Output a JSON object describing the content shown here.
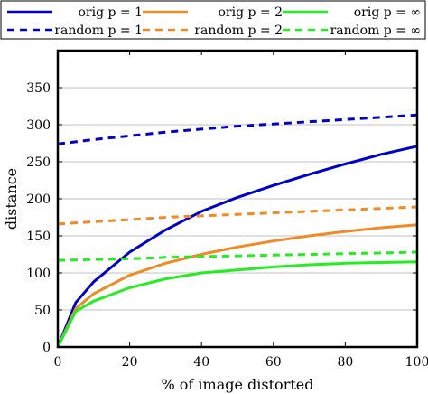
{
  "chart_data": {
    "type": "line",
    "xlabel": "% of image distorted",
    "ylabel": "distance",
    "xlim": [
      0,
      100
    ],
    "ylim": [
      0,
      400
    ],
    "xticks": [
      0,
      20,
      40,
      60,
      80,
      100
    ],
    "yticks": [
      0,
      50,
      100,
      150,
      200,
      250,
      300,
      350
    ],
    "grid": "horizontal",
    "legend_position": "top",
    "series": [
      {
        "name": "orig p = 1",
        "color": "#0000cc",
        "dash": "solid",
        "x": [
          0,
          5,
          10,
          20,
          30,
          40,
          50,
          60,
          70,
          80,
          90,
          100
        ],
        "y": [
          0,
          60,
          88,
          128,
          158,
          183,
          202,
          218,
          233,
          247,
          260,
          271
        ]
      },
      {
        "name": "orig p = 2",
        "color": "#f08a24",
        "dash": "solid",
        "x": [
          0,
          5,
          10,
          20,
          30,
          40,
          50,
          60,
          70,
          80,
          90,
          100
        ],
        "y": [
          0,
          52,
          72,
          97,
          113,
          125,
          135,
          143,
          150,
          156,
          161,
          165
        ]
      },
      {
        "name": "orig p = ∞",
        "color": "#22ee22",
        "dash": "solid",
        "x": [
          0,
          5,
          10,
          20,
          30,
          40,
          50,
          60,
          70,
          80,
          90,
          100
        ],
        "y": [
          0,
          48,
          62,
          80,
          92,
          100,
          104,
          108,
          111,
          113,
          114,
          115
        ]
      },
      {
        "name": "random p = 1",
        "color": "#0000cc",
        "dash": "dashed",
        "x": [
          0,
          10,
          20,
          30,
          40,
          50,
          60,
          70,
          80,
          90,
          100
        ],
        "y": [
          274,
          280,
          285,
          290,
          294,
          298,
          301,
          304,
          307,
          310,
          313
        ]
      },
      {
        "name": "random p = 2",
        "color": "#f08a24",
        "dash": "dashed",
        "x": [
          0,
          10,
          20,
          30,
          40,
          50,
          60,
          70,
          80,
          90,
          100
        ],
        "y": [
          166,
          169,
          172,
          175,
          177,
          179,
          181,
          183,
          185,
          187,
          189
        ]
      },
      {
        "name": "random p = ∞",
        "color": "#22ee22",
        "dash": "dashed",
        "x": [
          0,
          10,
          20,
          30,
          40,
          50,
          60,
          70,
          80,
          90,
          100
        ],
        "y": [
          117,
          118,
          119,
          121,
          122,
          123,
          124,
          125,
          126,
          127,
          128
        ]
      }
    ]
  }
}
